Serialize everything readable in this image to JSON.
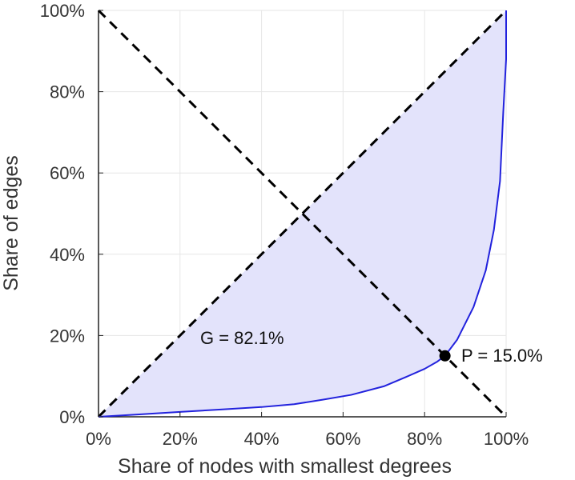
{
  "chart_data": {
    "type": "line",
    "title": "",
    "xlabel": "Share of nodes with smallest degrees",
    "ylabel": "Share of edges",
    "xlim": [
      0,
      100
    ],
    "ylim": [
      0,
      100
    ],
    "x_ticks": [
      "0%",
      "20%",
      "40%",
      "60%",
      "80%",
      "100%"
    ],
    "y_ticks": [
      "0%",
      "20%",
      "40%",
      "60%",
      "80%",
      "100%"
    ],
    "grid": true,
    "series": [
      {
        "type": "lorenz-curve",
        "x": [
          0,
          10,
          20,
          30,
          40,
          48,
          55,
          62,
          70,
          75,
          80,
          83,
          85,
          88,
          92,
          95,
          97,
          98.5,
          99.3,
          100,
          100
        ],
        "y": [
          0,
          0.6,
          1.2,
          1.8,
          2.4,
          3.1,
          4.2,
          5.4,
          7.5,
          9.6,
          11.8,
          13.5,
          15.0,
          19,
          27,
          36,
          46,
          58,
          75,
          88,
          100
        ]
      }
    ],
    "reference_lines": [
      {
        "type": "equality-line",
        "x": [
          0,
          100
        ],
        "y": [
          0,
          100
        ]
      },
      {
        "type": "anti-diagonal",
        "x": [
          0,
          100
        ],
        "y": [
          100,
          0
        ]
      }
    ],
    "marker": {
      "x": 85,
      "y": 15
    },
    "annotations": {
      "gini": "G = 82.1%",
      "point": "P = 15.0%"
    },
    "colors": {
      "curve": "#2222dd",
      "fill": "#e3e3fb",
      "dashed": "#000000",
      "grid": "#e6e6e6",
      "axis": "#222222"
    }
  }
}
